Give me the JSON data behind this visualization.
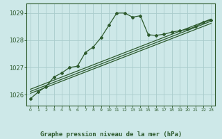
{
  "title": "Graphe pression niveau de la mer (hPa)",
  "bg_color": "#cde8e8",
  "grid_color": "#aacccc",
  "line_color": "#2d5a2d",
  "x_ticks": [
    0,
    1,
    2,
    3,
    4,
    5,
    6,
    7,
    8,
    9,
    10,
    11,
    12,
    13,
    14,
    15,
    16,
    17,
    18,
    19,
    20,
    21,
    22,
    23
  ],
  "y_ticks": [
    1026,
    1027,
    1028,
    1029
  ],
  "ylim": [
    1025.6,
    1029.35
  ],
  "xlim": [
    -0.5,
    23.5
  ],
  "main_series": [
    [
      0,
      1025.85
    ],
    [
      1,
      1026.1
    ],
    [
      2,
      1026.3
    ],
    [
      3,
      1026.65
    ],
    [
      4,
      1026.8
    ],
    [
      5,
      1027.0
    ],
    [
      6,
      1027.05
    ],
    [
      7,
      1027.55
    ],
    [
      8,
      1027.75
    ],
    [
      9,
      1028.1
    ],
    [
      10,
      1028.55
    ],
    [
      11,
      1029.0
    ],
    [
      12,
      1029.0
    ],
    [
      13,
      1028.85
    ],
    [
      14,
      1028.9
    ],
    [
      15,
      1028.2
    ],
    [
      16,
      1028.18
    ],
    [
      17,
      1028.22
    ],
    [
      18,
      1028.3
    ],
    [
      19,
      1028.35
    ],
    [
      20,
      1028.4
    ],
    [
      21,
      1028.5
    ],
    [
      22,
      1028.65
    ],
    [
      23,
      1028.75
    ]
  ],
  "smooth_line1": [
    [
      0,
      1026.05
    ],
    [
      23,
      1028.62
    ]
  ],
  "smooth_line2": [
    [
      0,
      1026.12
    ],
    [
      23,
      1028.7
    ]
  ],
  "smooth_line3": [
    [
      0,
      1026.2
    ],
    [
      23,
      1028.78
    ]
  ]
}
